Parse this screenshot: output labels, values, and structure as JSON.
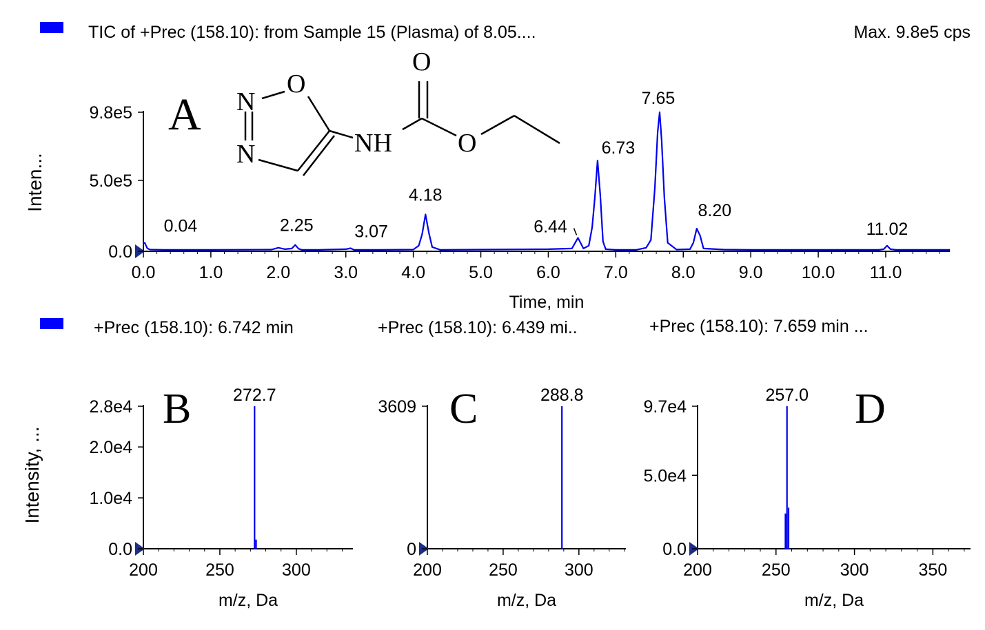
{
  "colors": {
    "trace": "#0000ee",
    "legend_swatch": "#0000ff",
    "axis": "#000000"
  },
  "panel_a": {
    "legend_text": "TIC of +Prec (158.10): from Sample 15 (Plasma) of 8.05....",
    "max_text": "Max. 9.8e5 cps",
    "letter": "A"
  },
  "legend_b": "+Prec (158.10): 6.742 min",
  "legend_c": "+Prec (158.10): 6.439 mi..",
  "legend_d": "+Prec (158.10): 7.659 min ...",
  "structure": {
    "atoms": {
      "n1": "N",
      "n2": "N",
      "o_ring": "O",
      "nh": "NH",
      "o_carbonyl": "O",
      "o_ester": "O"
    }
  },
  "chart_data": [
    {
      "type": "line",
      "panel": "A",
      "xlabel": "Time, min",
      "ylabel": "Inten...",
      "xlim": [
        0,
        11.95
      ],
      "ylim": [
        0,
        980000
      ],
      "x_ticks": [
        "0.0",
        "1.0",
        "2.0",
        "3.0",
        "4.0",
        "5.0",
        "6.0",
        "7.0",
        "8.0",
        "9.0",
        "10.0",
        "11.0"
      ],
      "y_ticks": [
        {
          "value": 0,
          "label": "0.0"
        },
        {
          "value": 500000,
          "label": "5.0e5"
        },
        {
          "value": 980000,
          "label": "9.8e5"
        }
      ],
      "x": [
        0,
        0.02,
        0.04,
        0.06,
        0.1,
        0.3,
        1.0,
        1.9,
        2.0,
        2.1,
        2.2,
        2.25,
        2.3,
        2.35,
        2.6,
        3.0,
        3.07,
        3.12,
        3.5,
        4.0,
        4.08,
        4.13,
        4.18,
        4.23,
        4.28,
        4.4,
        5.0,
        6.0,
        6.35,
        6.44,
        6.52,
        6.6,
        6.65,
        6.69,
        6.73,
        6.77,
        6.81,
        6.85,
        7.0,
        7.3,
        7.45,
        7.52,
        7.58,
        7.62,
        7.65,
        7.68,
        7.72,
        7.77,
        7.9,
        8.1,
        8.15,
        8.2,
        8.25,
        8.3,
        8.6,
        9.0,
        10.0,
        10.9,
        10.97,
        11.02,
        11.07,
        11.15,
        11.5,
        11.95
      ],
      "y": [
        55000,
        60000,
        40000,
        20000,
        12000,
        10000,
        10000,
        12000,
        25000,
        15000,
        20000,
        45000,
        18000,
        10000,
        10000,
        15000,
        22000,
        10000,
        10000,
        12000,
        40000,
        120000,
        260000,
        130000,
        30000,
        10000,
        12000,
        15000,
        20000,
        95000,
        20000,
        40000,
        170000,
        380000,
        640000,
        400000,
        70000,
        15000,
        10000,
        10000,
        25000,
        80000,
        450000,
        840000,
        980000,
        780000,
        380000,
        60000,
        12000,
        15000,
        60000,
        160000,
        110000,
        20000,
        12000,
        10000,
        10000,
        10000,
        15000,
        40000,
        15000,
        10000,
        10000,
        10000
      ],
      "peak_labels": [
        {
          "x": 0.04,
          "y": 60000,
          "label": "0.04"
        },
        {
          "x": 2.25,
          "y": 45000,
          "label": "2.25"
        },
        {
          "x": 3.07,
          "y": 22000,
          "label": "3.07"
        },
        {
          "x": 4.18,
          "y": 260000,
          "label": "4.18"
        },
        {
          "x": 6.44,
          "y": 95000,
          "label": "6.44"
        },
        {
          "x": 6.73,
          "y": 640000,
          "label": "6.73"
        },
        {
          "x": 7.65,
          "y": 980000,
          "label": "7.65"
        },
        {
          "x": 8.2,
          "y": 160000,
          "label": "8.20"
        },
        {
          "x": 11.02,
          "y": 40000,
          "label": "11.02"
        }
      ]
    },
    {
      "type": "bar",
      "panel": "B",
      "xlabel": "m/z, Da",
      "ylabel": "Intensity, ...",
      "xlim": [
        200,
        337
      ],
      "ylim": [
        0,
        28000
      ],
      "x_ticks": [
        "200",
        "250",
        "300"
      ],
      "y_ticks": [
        {
          "value": 0,
          "label": "0.0"
        },
        {
          "value": 10000,
          "label": "1.0e4"
        },
        {
          "value": 20000,
          "label": "2.0e4"
        },
        {
          "value": 28000,
          "label": "2.8e4"
        }
      ],
      "peaks": [
        {
          "x": 272.7,
          "y": 28000,
          "label": "272.7"
        },
        {
          "x": 273.7,
          "y": 1800,
          "label": ""
        }
      ],
      "letter": "B"
    },
    {
      "type": "bar",
      "panel": "C",
      "xlabel": "m/z, Da",
      "ylabel": "",
      "xlim": [
        200,
        331
      ],
      "ylim": [
        0,
        3609
      ],
      "x_ticks": [
        "200",
        "250",
        "300"
      ],
      "y_ticks": [
        {
          "value": 0,
          "label": "0"
        },
        {
          "value": 3609,
          "label": "3609"
        }
      ],
      "peaks": [
        {
          "x": 288.8,
          "y": 3609,
          "label": "288.8"
        }
      ],
      "letter": "C"
    },
    {
      "type": "bar",
      "panel": "D",
      "xlabel": "m/z, Da",
      "ylabel": "",
      "xlim": [
        200,
        374
      ],
      "ylim": [
        0,
        97000
      ],
      "x_ticks": [
        "200",
        "250",
        "300",
        "350"
      ],
      "y_ticks": [
        {
          "value": 0,
          "label": "0.0"
        },
        {
          "value": 50000,
          "label": "5.0e4"
        },
        {
          "value": 97000,
          "label": "9.7e4"
        }
      ],
      "peaks": [
        {
          "x": 256.0,
          "y": 24000,
          "label": ""
        },
        {
          "x": 257.0,
          "y": 97000,
          "label": "257.0"
        },
        {
          "x": 258.0,
          "y": 28000,
          "label": ""
        }
      ],
      "letter": "D"
    }
  ]
}
